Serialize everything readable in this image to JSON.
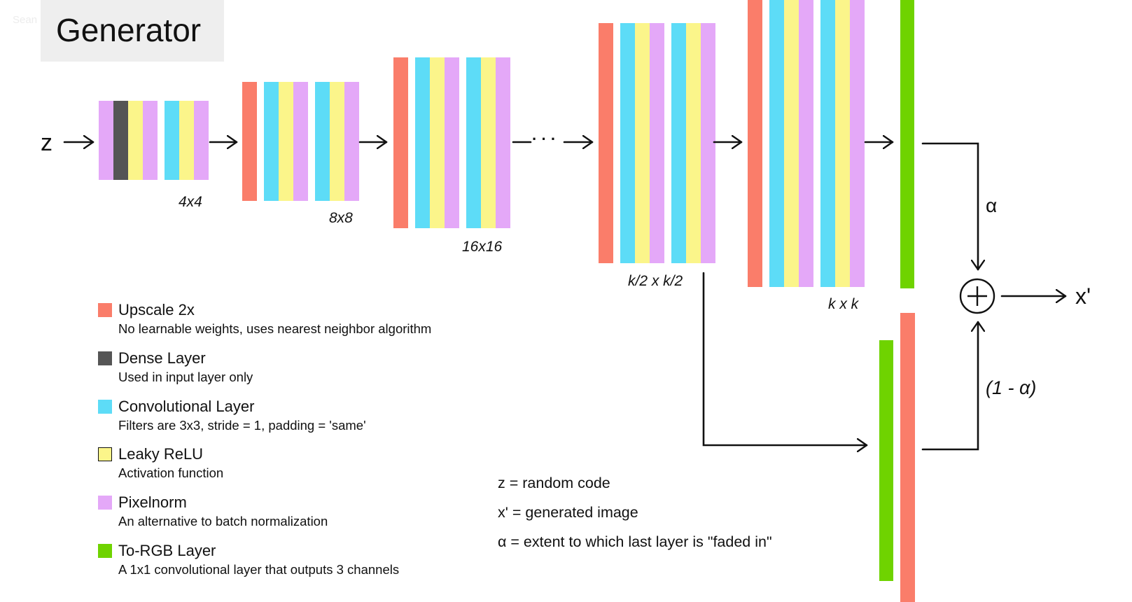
{
  "title": "Generator",
  "watermark": "Sean",
  "colors": {
    "upscale": "#fa7d6a",
    "dense": "#555555",
    "conv": "#5ddcf7",
    "relu": "#fbf58a",
    "pixelnorm": "#e4a8f8",
    "torgb": "#6fd300",
    "line": "#111111"
  },
  "diagram": {
    "input_label": "z",
    "output_label": "x'",
    "dots": "· · ·",
    "alpha_label": "α",
    "one_minus_alpha_label": "(1 - α)",
    "plus_symbol": "+",
    "blocks": [
      {
        "id": "block-4x4",
        "label": "4x4",
        "layers": [
          "pixelnorm",
          "dense",
          "relu",
          "pixelnorm",
          "gap",
          "conv",
          "relu",
          "pixelnorm"
        ]
      },
      {
        "id": "block-8x8",
        "label": "8x8",
        "layers": [
          "upscale",
          "gap",
          "conv",
          "relu",
          "pixelnorm",
          "gap",
          "conv",
          "relu",
          "pixelnorm"
        ]
      },
      {
        "id": "block-16x16",
        "label": "16x16",
        "layers": [
          "upscale",
          "gap",
          "conv",
          "relu",
          "pixelnorm",
          "gap",
          "conv",
          "relu",
          "pixelnorm"
        ]
      },
      {
        "id": "block-k-half",
        "label": "k/2 x k/2",
        "layers": [
          "upscale",
          "gap",
          "conv",
          "relu",
          "pixelnorm",
          "gap",
          "conv",
          "relu",
          "pixelnorm"
        ]
      },
      {
        "id": "block-k",
        "label": "k x k",
        "layers": [
          "upscale",
          "gap",
          "conv",
          "relu",
          "pixelnorm",
          "gap",
          "conv",
          "relu",
          "pixelnorm"
        ]
      }
    ]
  },
  "legend": [
    {
      "key": "upscale",
      "name": "Upscale 2x",
      "desc": "No learnable weights, uses nearest neighbor algorithm"
    },
    {
      "key": "dense",
      "name": "Dense Layer",
      "desc": "Used in input layer only"
    },
    {
      "key": "conv",
      "name": "Convolutional Layer",
      "desc": "Filters are 3x3, stride = 1,  padding = 'same'"
    },
    {
      "key": "relu",
      "name": "Leaky ReLU",
      "desc": "Activation function"
    },
    {
      "key": "pixelnorm",
      "name": "Pixelnorm",
      "desc": "An alternative to batch normalization"
    },
    {
      "key": "torgb",
      "name": "To-RGB Layer",
      "desc": "A 1x1 convolutional layer that outputs 3 channels"
    }
  ],
  "notes": [
    "z = random code",
    "x' = generated image",
    "α = extent to which last layer is \"faded in\""
  ]
}
